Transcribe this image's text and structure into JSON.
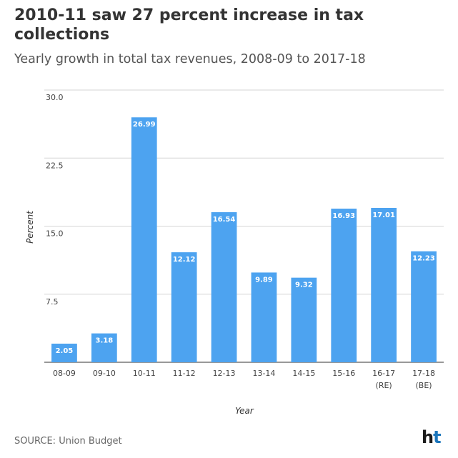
{
  "chart_data": {
    "type": "bar",
    "title": "2010-11 saw 27 percent increase in tax collections",
    "subtitle": "Yearly growth in total tax revenues, 2008-09 to 2017-18",
    "xlabel": "Year",
    "ylabel": "Percent",
    "ylim": [
      0,
      30
    ],
    "yticks": [
      "30.0",
      "22.5",
      "15.0",
      "7.5"
    ],
    "ytick_values": [
      30,
      22.5,
      15,
      7.5
    ],
    "categories": [
      "08-09",
      "09-10",
      "10-11",
      "11-12",
      "12-13",
      "13-14",
      "14-15",
      "15-16",
      "16-17 (RE)",
      "17-18 (BE)"
    ],
    "category_lines": [
      [
        "08-09"
      ],
      [
        "09-10"
      ],
      [
        "10-11"
      ],
      [
        "11-12"
      ],
      [
        "12-13"
      ],
      [
        "13-14"
      ],
      [
        "14-15"
      ],
      [
        "15-16"
      ],
      [
        "16-17",
        "(RE)"
      ],
      [
        "17-18",
        "(BE)"
      ]
    ],
    "values": [
      2.05,
      3.18,
      26.99,
      12.12,
      16.54,
      9.89,
      9.32,
      16.93,
      17.01,
      12.23
    ],
    "value_labels": [
      "2.05",
      "3.18",
      "26.99",
      "12.12",
      "16.54",
      "9.89",
      "9.32",
      "16.93",
      "17.01",
      "12.23"
    ],
    "bar_color": "#4da3f0",
    "grid": true
  },
  "footer": {
    "source": "SOURCE: Union Budget",
    "logo_h": "h",
    "logo_t": "t"
  }
}
